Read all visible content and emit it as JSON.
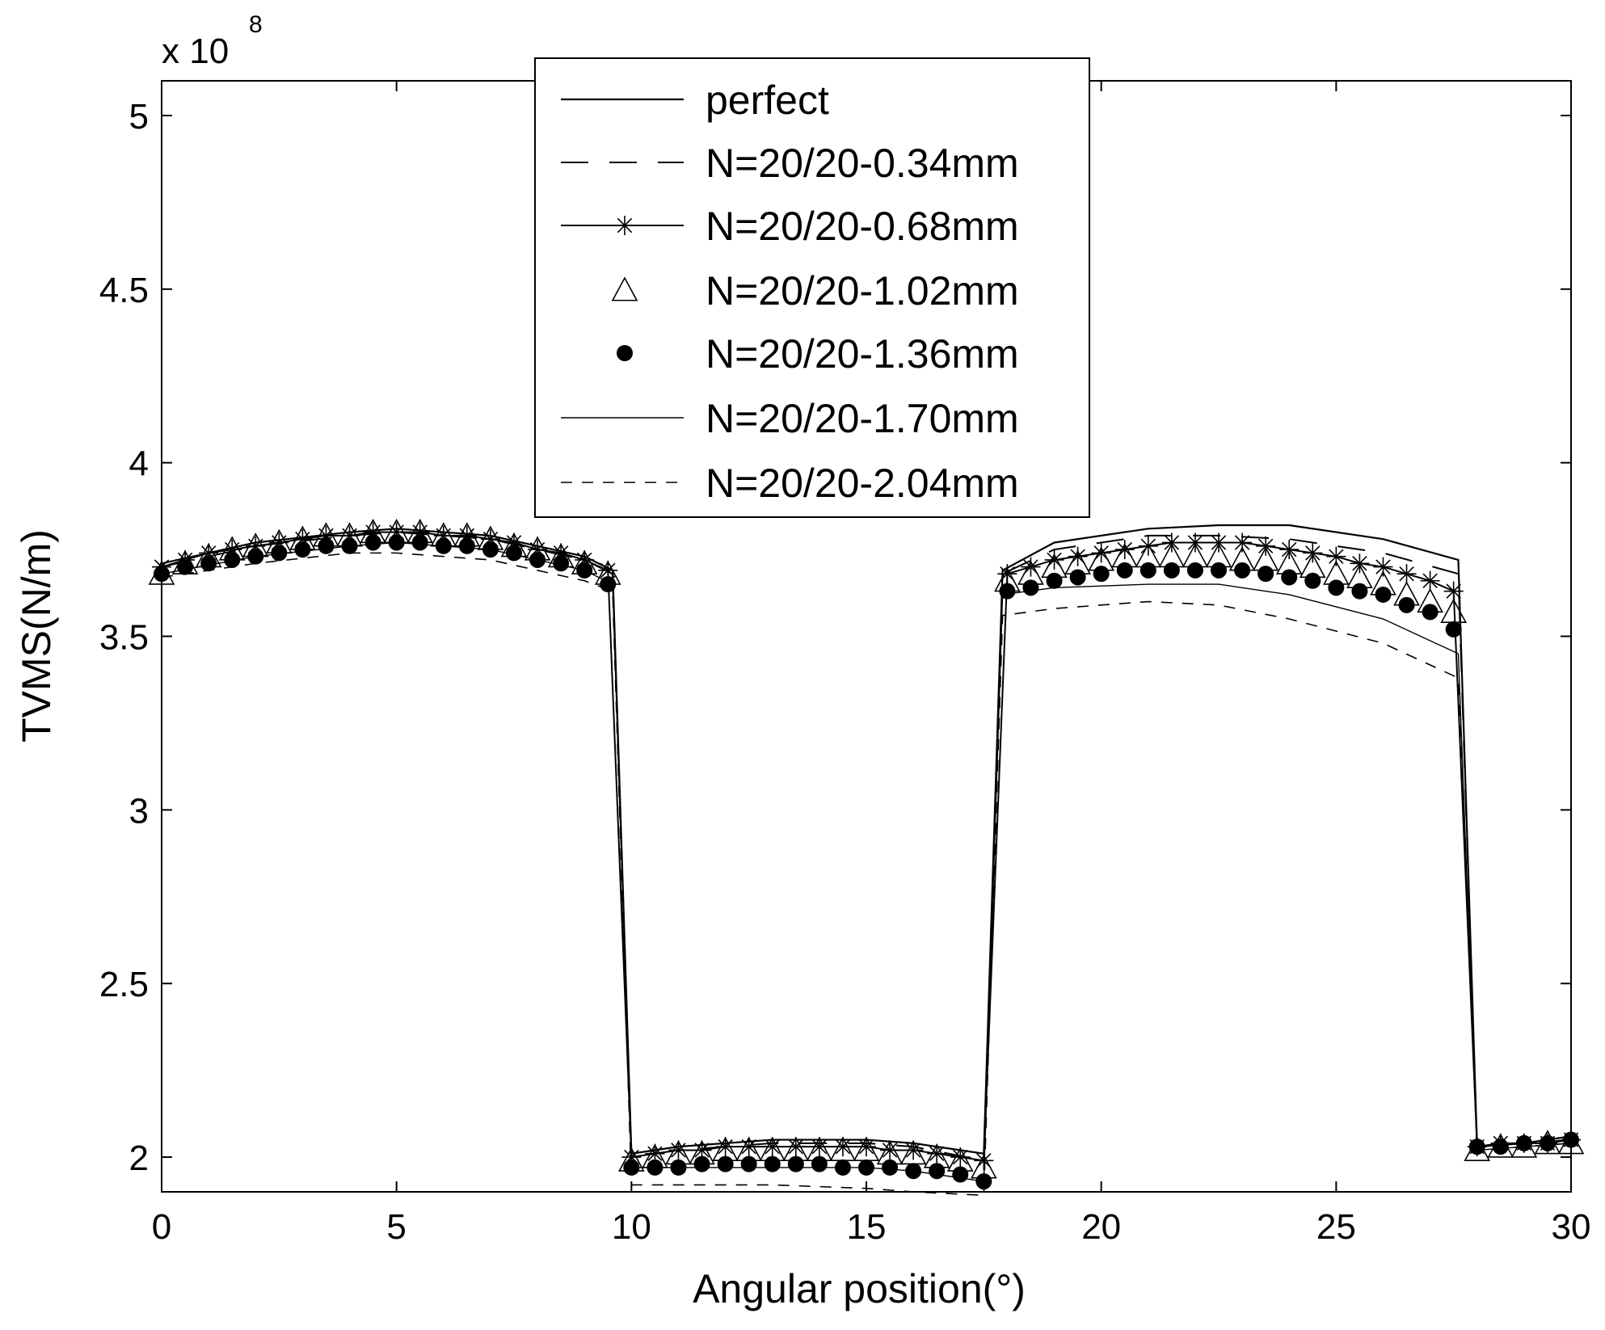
{
  "chart_data": {
    "type": "line",
    "title": "",
    "xlabel": "Angular position(°)",
    "ylabel": "TVMS(N/m)",
    "y_multiplier_base": "x 10",
    "y_multiplier_exp": "8",
    "xlim": [
      0,
      30
    ],
    "ylim": [
      1.9,
      5.1
    ],
    "x_ticks": [
      0,
      5,
      10,
      15,
      20,
      25,
      30
    ],
    "x_tick_labels": [
      "0",
      "5",
      "10",
      "15",
      "20",
      "25",
      "30"
    ],
    "y_ticks": [
      2,
      2.5,
      3,
      3.5,
      4,
      4.5,
      5
    ],
    "y_tick_labels": [
      "2",
      "2.5",
      "3",
      "3.5",
      "4",
      "4.5",
      "5"
    ],
    "grid": false,
    "legend_position": "top-center",
    "series": [
      {
        "name": "perfect",
        "style": "solid",
        "x": [
          0,
          2,
          4,
          5,
          7,
          9,
          9.6,
          10,
          11,
          13,
          15,
          16,
          17.5,
          17.9,
          19,
          21,
          22.5,
          24,
          26,
          27.6,
          28,
          29,
          30
        ],
        "y": [
          3.71,
          3.77,
          3.8,
          3.81,
          3.79,
          3.73,
          3.69,
          2.01,
          2.03,
          2.05,
          2.05,
          2.04,
          2.01,
          3.69,
          3.77,
          3.81,
          3.82,
          3.82,
          3.78,
          3.72,
          2.03,
          2.04,
          2.06
        ]
      },
      {
        "name": "N=20/20-0.34mm",
        "style": "dash-long",
        "x": [
          0,
          2,
          4,
          5,
          7,
          9,
          9.6,
          10,
          11,
          13,
          15,
          16,
          17.5,
          17.9,
          19,
          21,
          22.5,
          24,
          26,
          27.6,
          28,
          29,
          30
        ],
        "y": [
          3.7,
          3.76,
          3.79,
          3.8,
          3.78,
          3.72,
          3.68,
          2.0,
          2.02,
          2.04,
          2.04,
          2.03,
          1.99,
          3.68,
          3.75,
          3.79,
          3.79,
          3.78,
          3.74,
          3.68,
          2.03,
          2.04,
          2.05
        ]
      },
      {
        "name": "N=20/20-0.68mm",
        "style": "solid-star",
        "x": [
          0,
          0.5,
          1,
          1.5,
          2,
          2.5,
          3,
          3.5,
          4,
          4.5,
          5,
          5.5,
          6,
          6.5,
          7,
          7.5,
          8,
          8.5,
          9,
          9.5,
          10,
          10.5,
          11,
          11.5,
          12,
          12.5,
          13,
          13.5,
          14,
          14.5,
          15,
          15.5,
          16,
          16.5,
          17,
          17.5,
          18,
          18.5,
          19,
          19.5,
          20,
          20.5,
          21,
          21.5,
          22,
          22.5,
          23,
          23.5,
          24,
          24.5,
          25,
          25.5,
          26,
          26.5,
          27,
          27.5,
          28,
          28.5,
          29,
          29.5,
          30
        ],
        "y": [
          3.7,
          3.72,
          3.74,
          3.75,
          3.76,
          3.77,
          3.78,
          3.79,
          3.79,
          3.8,
          3.8,
          3.8,
          3.79,
          3.79,
          3.78,
          3.77,
          3.75,
          3.74,
          3.72,
          3.69,
          2.0,
          2.01,
          2.02,
          2.02,
          2.03,
          2.03,
          2.03,
          2.03,
          2.03,
          2.03,
          2.03,
          2.02,
          2.02,
          2.01,
          2.0,
          1.99,
          3.68,
          3.7,
          3.72,
          3.73,
          3.74,
          3.75,
          3.76,
          3.77,
          3.77,
          3.77,
          3.77,
          3.76,
          3.75,
          3.74,
          3.73,
          3.71,
          3.7,
          3.68,
          3.66,
          3.63,
          2.03,
          2.04,
          2.04,
          2.04,
          2.05
        ]
      },
      {
        "name": "N=20/20-1.02mm",
        "style": "marker-triangle",
        "x": [
          0,
          0.5,
          1,
          1.5,
          2,
          2.5,
          3,
          3.5,
          4,
          4.5,
          5,
          5.5,
          6,
          6.5,
          7,
          7.5,
          8,
          8.5,
          9,
          9.5,
          10,
          10.5,
          11,
          11.5,
          12,
          12.5,
          13,
          13.5,
          14,
          14.5,
          15,
          15.5,
          16,
          16.5,
          17,
          17.5,
          18,
          18.5,
          19,
          19.5,
          20,
          20.5,
          21,
          21.5,
          22,
          22.5,
          23,
          23.5,
          24,
          24.5,
          25,
          25.5,
          26,
          26.5,
          27,
          27.5,
          28,
          28.5,
          29,
          29.5,
          30
        ],
        "y": [
          3.68,
          3.71,
          3.73,
          3.75,
          3.76,
          3.77,
          3.78,
          3.79,
          3.79,
          3.8,
          3.8,
          3.8,
          3.79,
          3.79,
          3.78,
          3.76,
          3.75,
          3.73,
          3.71,
          3.68,
          1.99,
          2.0,
          2.01,
          2.01,
          2.02,
          2.02,
          2.02,
          2.02,
          2.02,
          2.02,
          2.02,
          2.01,
          2.01,
          2.0,
          1.99,
          1.97,
          3.66,
          3.68,
          3.7,
          3.71,
          3.72,
          3.73,
          3.73,
          3.73,
          3.73,
          3.73,
          3.72,
          3.72,
          3.71,
          3.7,
          3.68,
          3.67,
          3.65,
          3.62,
          3.6,
          3.57,
          2.02,
          2.03,
          2.03,
          2.04,
          2.04
        ]
      },
      {
        "name": "N=20/20-1.36mm",
        "style": "marker-dot",
        "x": [
          0,
          0.5,
          1,
          1.5,
          2,
          2.5,
          3,
          3.5,
          4,
          4.5,
          5,
          5.5,
          6,
          6.5,
          7,
          7.5,
          8,
          8.5,
          9,
          9.5,
          10,
          10.5,
          11,
          11.5,
          12,
          12.5,
          13,
          13.5,
          14,
          14.5,
          15,
          15.5,
          16,
          16.5,
          17,
          17.5,
          18,
          18.5,
          19,
          19.5,
          20,
          20.5,
          21,
          21.5,
          22,
          22.5,
          23,
          23.5,
          24,
          24.5,
          25,
          25.5,
          26,
          26.5,
          27,
          27.5,
          28,
          28.5,
          29,
          29.5,
          30
        ],
        "y": [
          3.68,
          3.7,
          3.71,
          3.72,
          3.73,
          3.74,
          3.75,
          3.76,
          3.76,
          3.77,
          3.77,
          3.77,
          3.76,
          3.76,
          3.75,
          3.74,
          3.72,
          3.71,
          3.69,
          3.65,
          1.97,
          1.97,
          1.97,
          1.98,
          1.98,
          1.98,
          1.98,
          1.98,
          1.98,
          1.97,
          1.97,
          1.97,
          1.96,
          1.96,
          1.95,
          1.93,
          3.63,
          3.64,
          3.66,
          3.67,
          3.68,
          3.69,
          3.69,
          3.69,
          3.69,
          3.69,
          3.69,
          3.68,
          3.67,
          3.66,
          3.64,
          3.63,
          3.62,
          3.59,
          3.57,
          3.52,
          2.03,
          2.03,
          2.04,
          2.04,
          2.05
        ]
      },
      {
        "name": "N=20/20-1.70mm",
        "style": "solid-thin",
        "x": [
          0,
          2,
          4,
          5,
          7,
          9,
          9.6,
          10,
          11,
          13,
          15,
          16,
          17.5,
          17.9,
          19,
          21,
          22.5,
          24,
          26,
          27.6,
          28,
          29,
          30
        ],
        "y": [
          3.68,
          3.73,
          3.76,
          3.77,
          3.75,
          3.69,
          3.65,
          1.97,
          1.97,
          1.97,
          1.97,
          1.96,
          1.93,
          3.62,
          3.64,
          3.65,
          3.65,
          3.62,
          3.55,
          3.45,
          2.02,
          2.03,
          2.04
        ]
      },
      {
        "name": "N=20/20-2.04mm",
        "style": "dash-short",
        "x": [
          0,
          2,
          4,
          5,
          7,
          9,
          9.6,
          10,
          11,
          13,
          15,
          16,
          17.5,
          17.9,
          19,
          21,
          22.5,
          24,
          26,
          27.6,
          28,
          29,
          30
        ],
        "y": [
          3.67,
          3.71,
          3.74,
          3.74,
          3.72,
          3.66,
          3.63,
          1.92,
          1.92,
          1.92,
          1.91,
          1.9,
          1.89,
          3.56,
          3.58,
          3.6,
          3.59,
          3.55,
          3.48,
          3.38,
          2.02,
          2.03,
          2.04
        ]
      }
    ]
  }
}
